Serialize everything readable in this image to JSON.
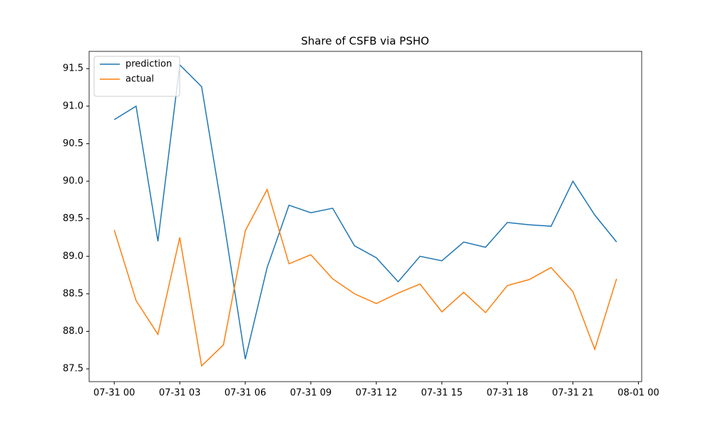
{
  "chart_data": {
    "type": "line",
    "title": "Share of CSFB via PSHO",
    "x": [
      0,
      1,
      2,
      3,
      4,
      5,
      6,
      7,
      8,
      9,
      10,
      11,
      12,
      13,
      14,
      15,
      16,
      17,
      18,
      19,
      20,
      21,
      22,
      23
    ],
    "series": [
      {
        "name": "prediction",
        "color": "#1f77b4",
        "values": [
          90.82,
          91.0,
          89.2,
          91.55,
          91.26,
          89.5,
          87.63,
          88.85,
          89.68,
          89.58,
          89.64,
          89.14,
          88.98,
          88.66,
          89.0,
          88.94,
          89.19,
          89.12,
          89.45,
          89.42,
          89.4,
          90.0,
          89.55,
          89.19
        ]
      },
      {
        "name": "actual",
        "color": "#ff7f0e",
        "values": [
          89.35,
          88.41,
          87.96,
          89.25,
          87.54,
          87.82,
          89.34,
          89.89,
          88.9,
          89.02,
          88.7,
          88.5,
          88.37,
          88.51,
          88.63,
          88.26,
          88.52,
          88.25,
          88.61,
          88.69,
          88.85,
          88.53,
          87.76,
          88.7
        ]
      }
    ],
    "xlim": [
      -1.15,
      24.15
    ],
    "xticks": [
      {
        "value": 0,
        "label": "07-31 00"
      },
      {
        "value": 3,
        "label": "07-31 03"
      },
      {
        "value": 6,
        "label": "07-31 06"
      },
      {
        "value": 9,
        "label": "07-31 09"
      },
      {
        "value": 12,
        "label": "07-31 12"
      },
      {
        "value": 15,
        "label": "07-31 15"
      },
      {
        "value": 18,
        "label": "07-31 18"
      },
      {
        "value": 21,
        "label": "07-31 21"
      },
      {
        "value": 24,
        "label": "08-01 00"
      }
    ],
    "ylim": [
      87.33,
      91.73
    ],
    "yticks": [
      87.5,
      {
        "value": 88,
        "label": "88.0"
      },
      88.5,
      {
        "value": 89,
        "label": "89.0"
      },
      89.5,
      {
        "value": 90,
        "label": "90.0"
      },
      90.5,
      {
        "value": 91,
        "label": "91.0"
      },
      91.5
    ],
    "grid": false,
    "legend": "upper left"
  }
}
